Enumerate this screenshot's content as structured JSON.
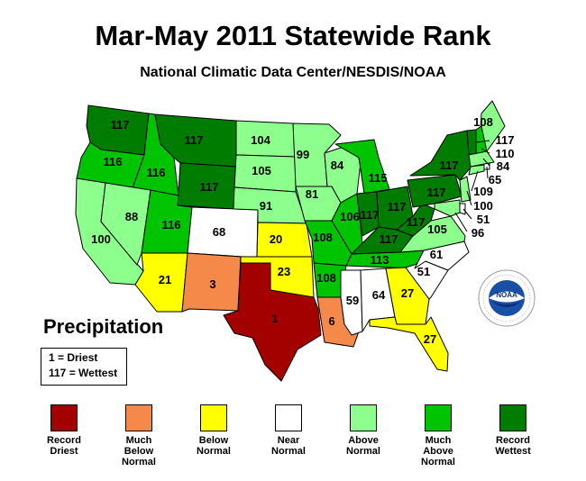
{
  "title": "Mar-May 2011 Statewide Rank",
  "subtitle": "National Climatic Data Center/NESDIS/NOAA",
  "map_label": "Precipitation",
  "key": {
    "driest": "1 = Driest",
    "wettest": "117 = Wettest"
  },
  "colors": {
    "record_driest": "#a30000",
    "much_below": "#f4894a",
    "below": "#ffff00",
    "near": "#ffffff",
    "above": "#8cff8c",
    "much_above": "#00c400",
    "record_wettest": "#007d00"
  },
  "legend": [
    {
      "label1": "Record",
      "label2": "Driest",
      "label3": "",
      "color_key": "record_driest"
    },
    {
      "label1": "Much",
      "label2": "Below",
      "label3": "Normal",
      "color_key": "much_below"
    },
    {
      "label1": "Below",
      "label2": "Normal",
      "label3": "",
      "color_key": "below"
    },
    {
      "label1": "Near",
      "label2": "Normal",
      "label3": "",
      "color_key": "near"
    },
    {
      "label1": "Above",
      "label2": "Normal",
      "label3": "",
      "color_key": "above"
    },
    {
      "label1": "Much",
      "label2": "Above",
      "label3": "Normal",
      "color_key": "much_above"
    },
    {
      "label1": "Record",
      "label2": "Wettest",
      "label3": "",
      "color_key": "record_wettest"
    }
  ],
  "states": {
    "WA": {
      "rank": "117",
      "category": "record_wettest"
    },
    "OR": {
      "rank": "116",
      "category": "much_above"
    },
    "ID": {
      "rank": "116",
      "category": "much_above"
    },
    "MT": {
      "rank": "117",
      "category": "record_wettest"
    },
    "WY": {
      "rank": "117",
      "category": "record_wettest"
    },
    "CA": {
      "rank": "100",
      "category": "above"
    },
    "NV": {
      "rank": "88",
      "category": "above"
    },
    "UT": {
      "rank": "116",
      "category": "much_above"
    },
    "AZ": {
      "rank": "21",
      "category": "below"
    },
    "CO": {
      "rank": "68",
      "category": "near"
    },
    "NM": {
      "rank": "3",
      "category": "much_below"
    },
    "ND": {
      "rank": "104",
      "category": "above"
    },
    "SD": {
      "rank": "105",
      "category": "above"
    },
    "NE": {
      "rank": "91",
      "category": "above"
    },
    "KS": {
      "rank": "20",
      "category": "below"
    },
    "OK": {
      "rank": "23",
      "category": "below"
    },
    "TX": {
      "rank": "1",
      "category": "record_driest"
    },
    "MN": {
      "rank": "99",
      "category": "above"
    },
    "IA": {
      "rank": "81",
      "category": "above"
    },
    "MO": {
      "rank": "108",
      "category": "much_above"
    },
    "AR": {
      "rank": "108",
      "category": "much_above"
    },
    "LA": {
      "rank": "6",
      "category": "much_below"
    },
    "WI": {
      "rank": "84",
      "category": "above"
    },
    "IL": {
      "rank": "106",
      "category": "much_above"
    },
    "MI": {
      "rank": "115",
      "category": "much_above"
    },
    "IN": {
      "rank": "117",
      "category": "record_wettest"
    },
    "OH": {
      "rank": "117",
      "category": "record_wettest"
    },
    "KY": {
      "rank": "117",
      "category": "record_wettest"
    },
    "TN": {
      "rank": "113",
      "category": "much_above"
    },
    "MS": {
      "rank": "59",
      "category": "near"
    },
    "AL": {
      "rank": "64",
      "category": "near"
    },
    "GA": {
      "rank": "27",
      "category": "below"
    },
    "FL": {
      "rank": "27",
      "category": "below"
    },
    "SC": {
      "rank": "51",
      "category": "near"
    },
    "NC": {
      "rank": "61",
      "category": "near"
    },
    "VA": {
      "rank": "105",
      "category": "above"
    },
    "WV": {
      "rank": "117",
      "category": "record_wettest"
    },
    "PA": {
      "rank": "117",
      "category": "record_wettest"
    },
    "NY": {
      "rank": "117",
      "category": "record_wettest"
    },
    "ME": {
      "rank": "108",
      "category": "above"
    },
    "VT": {
      "rank": "117",
      "category": "record_wettest"
    },
    "NH": {
      "rank": "110",
      "category": "much_above"
    },
    "MA": {
      "rank": "84",
      "category": "above"
    },
    "RI": {
      "rank": "65",
      "category": "near"
    },
    "CT": {
      "rank": "109",
      "category": "above"
    },
    "NJ": {
      "rank": "100",
      "category": "above"
    },
    "DE": {
      "rank": "51",
      "category": "near"
    },
    "MD": {
      "rank": "96",
      "category": "above"
    }
  }
}
